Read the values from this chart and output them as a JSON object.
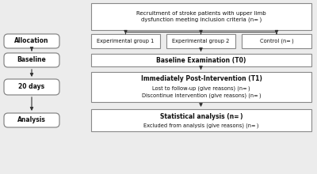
{
  "bg_color": "#ececec",
  "box_color": "#ffffff",
  "box_edge": "#888888",
  "arrow_color": "#333333",
  "text_color": "#111111",
  "title_box": "Recruitment of stroke patients with upper limb\ndysfunction meeting inclusion criteria (n= )",
  "exp1": "Experimental group 1",
  "exp2": "Experimental group 2",
  "control": "Control (n= )",
  "baseline_box": "Baseline Examination (T0)",
  "t1_title": "Immediately Post-Intervention (T1)",
  "t1_line1": "Lost to follow-up (give reasons) (n= )",
  "t1_line2": "Discontinue intervention (give reasons) (n= )",
  "analysis_title": "Statistical analysis (n= )",
  "analysis_line1": "Excluded from analysis (give reasons) (n= )",
  "left_allocation": "Allocation",
  "left_baseline": "Baseline",
  "left_20days": "20 days",
  "left_analysis": "Analysis"
}
